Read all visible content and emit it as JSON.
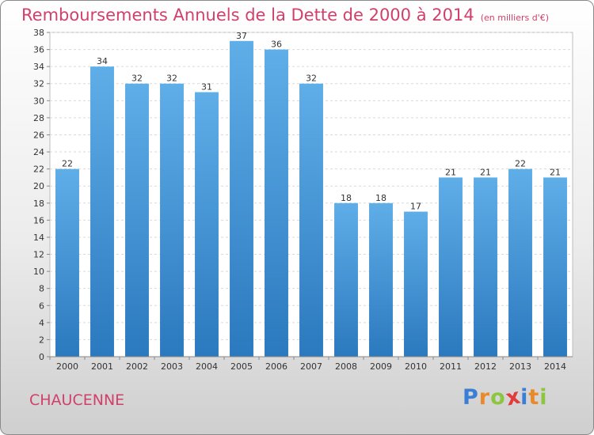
{
  "title": "Remboursements Annuels de la Dette de 2000 à 2014",
  "subtitle": "(en milliers d'€)",
  "commune": "CHAUCENNE",
  "logo": {
    "text": "Proxiti",
    "letters": [
      {
        "char": "P",
        "color": "#3a7fd5"
      },
      {
        "char": "r",
        "color": "#e8892b"
      },
      {
        "char": "o",
        "color": "#8cc63f"
      },
      {
        "char": "x",
        "color": "#e33b3b"
      },
      {
        "char": "i",
        "color": "#3a7fd5"
      },
      {
        "char": "t",
        "color": "#e8892b"
      },
      {
        "char": "i",
        "color": "#8cc63f"
      }
    ]
  },
  "colors": {
    "bar_top": "#5faee8",
    "bar_bottom": "#2b79be",
    "title": "#d1406a"
  },
  "chart_data": {
    "type": "bar",
    "categories": [
      "2000",
      "2001",
      "2002",
      "2003",
      "2004",
      "2005",
      "2006",
      "2007",
      "2008",
      "2009",
      "2010",
      "2011",
      "2012",
      "2013",
      "2014"
    ],
    "values": [
      22,
      34,
      32,
      32,
      31,
      37,
      36,
      32,
      18,
      18,
      17,
      21,
      21,
      22,
      21
    ],
    "ylim": [
      0,
      38
    ],
    "yticks": [
      0,
      2,
      4,
      6,
      8,
      10,
      12,
      14,
      16,
      18,
      20,
      22,
      24,
      26,
      28,
      30,
      32,
      34,
      36,
      38
    ],
    "grid": true,
    "data_labels": true
  }
}
